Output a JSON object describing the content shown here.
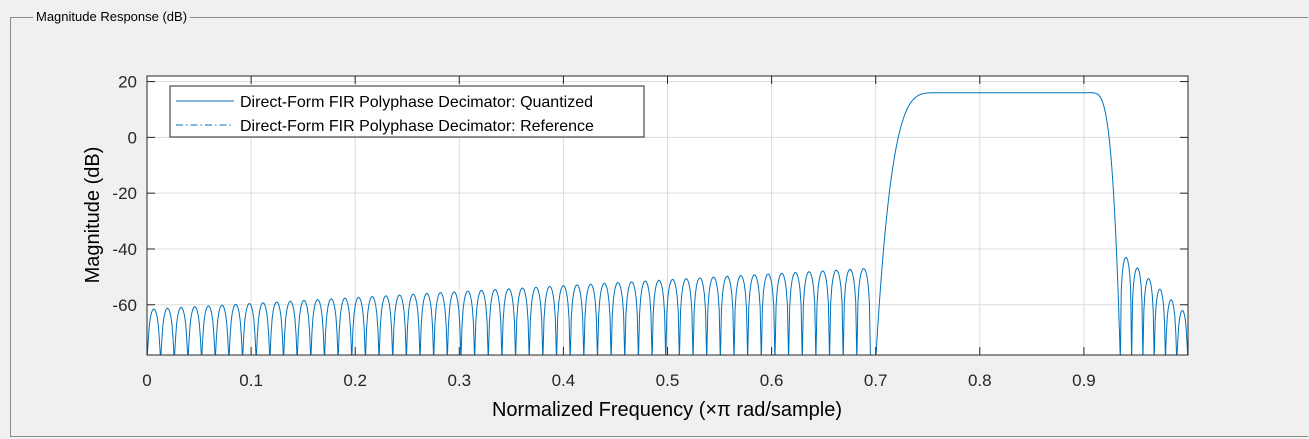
{
  "panel": {
    "title": "Magnitude Response (dB)"
  },
  "chart_data": {
    "type": "line",
    "xlabel": "Normalized Frequency (×π rad/sample)",
    "ylabel": "Magnitude (dB)",
    "xlim": [
      0,
      1
    ],
    "ylim": [
      -78,
      22
    ],
    "xticks": [
      0,
      0.1,
      0.2,
      0.3,
      0.4,
      0.5,
      0.6,
      0.7,
      0.8,
      0.9
    ],
    "xtick_labels": [
      "0",
      "0.1",
      "0.2",
      "0.3",
      "0.4",
      "0.5",
      "0.6",
      "0.7",
      "0.8",
      "0.9"
    ],
    "yticks": [
      20,
      0,
      -20,
      -40,
      -60
    ],
    "ytick_labels": [
      "20",
      "0",
      "-20",
      "-40",
      "-60"
    ],
    "grid": true,
    "legend_position": "top-left",
    "line_color": "#0072bd",
    "series": [
      {
        "name": "Direct-Form FIR Polyphase Decimator: Quantized",
        "style": "solid",
        "passband": {
          "x_start": 0.7,
          "x_end": 0.935,
          "level_db": 16
        },
        "stopband_lobes": [
          {
            "x_range": [
              0,
              0.695
            ],
            "lobe_count": 53,
            "peak_start_db": -61.5,
            "peak_end_db": -47
          },
          {
            "x_range": [
              0.935,
              1.0
            ],
            "lobe_count": 6,
            "peak_start_db": -43,
            "peak_end_db": -62
          }
        ]
      },
      {
        "name": "Direct-Form FIR Polyphase Decimator: Reference",
        "style": "dash-dot"
      }
    ]
  }
}
